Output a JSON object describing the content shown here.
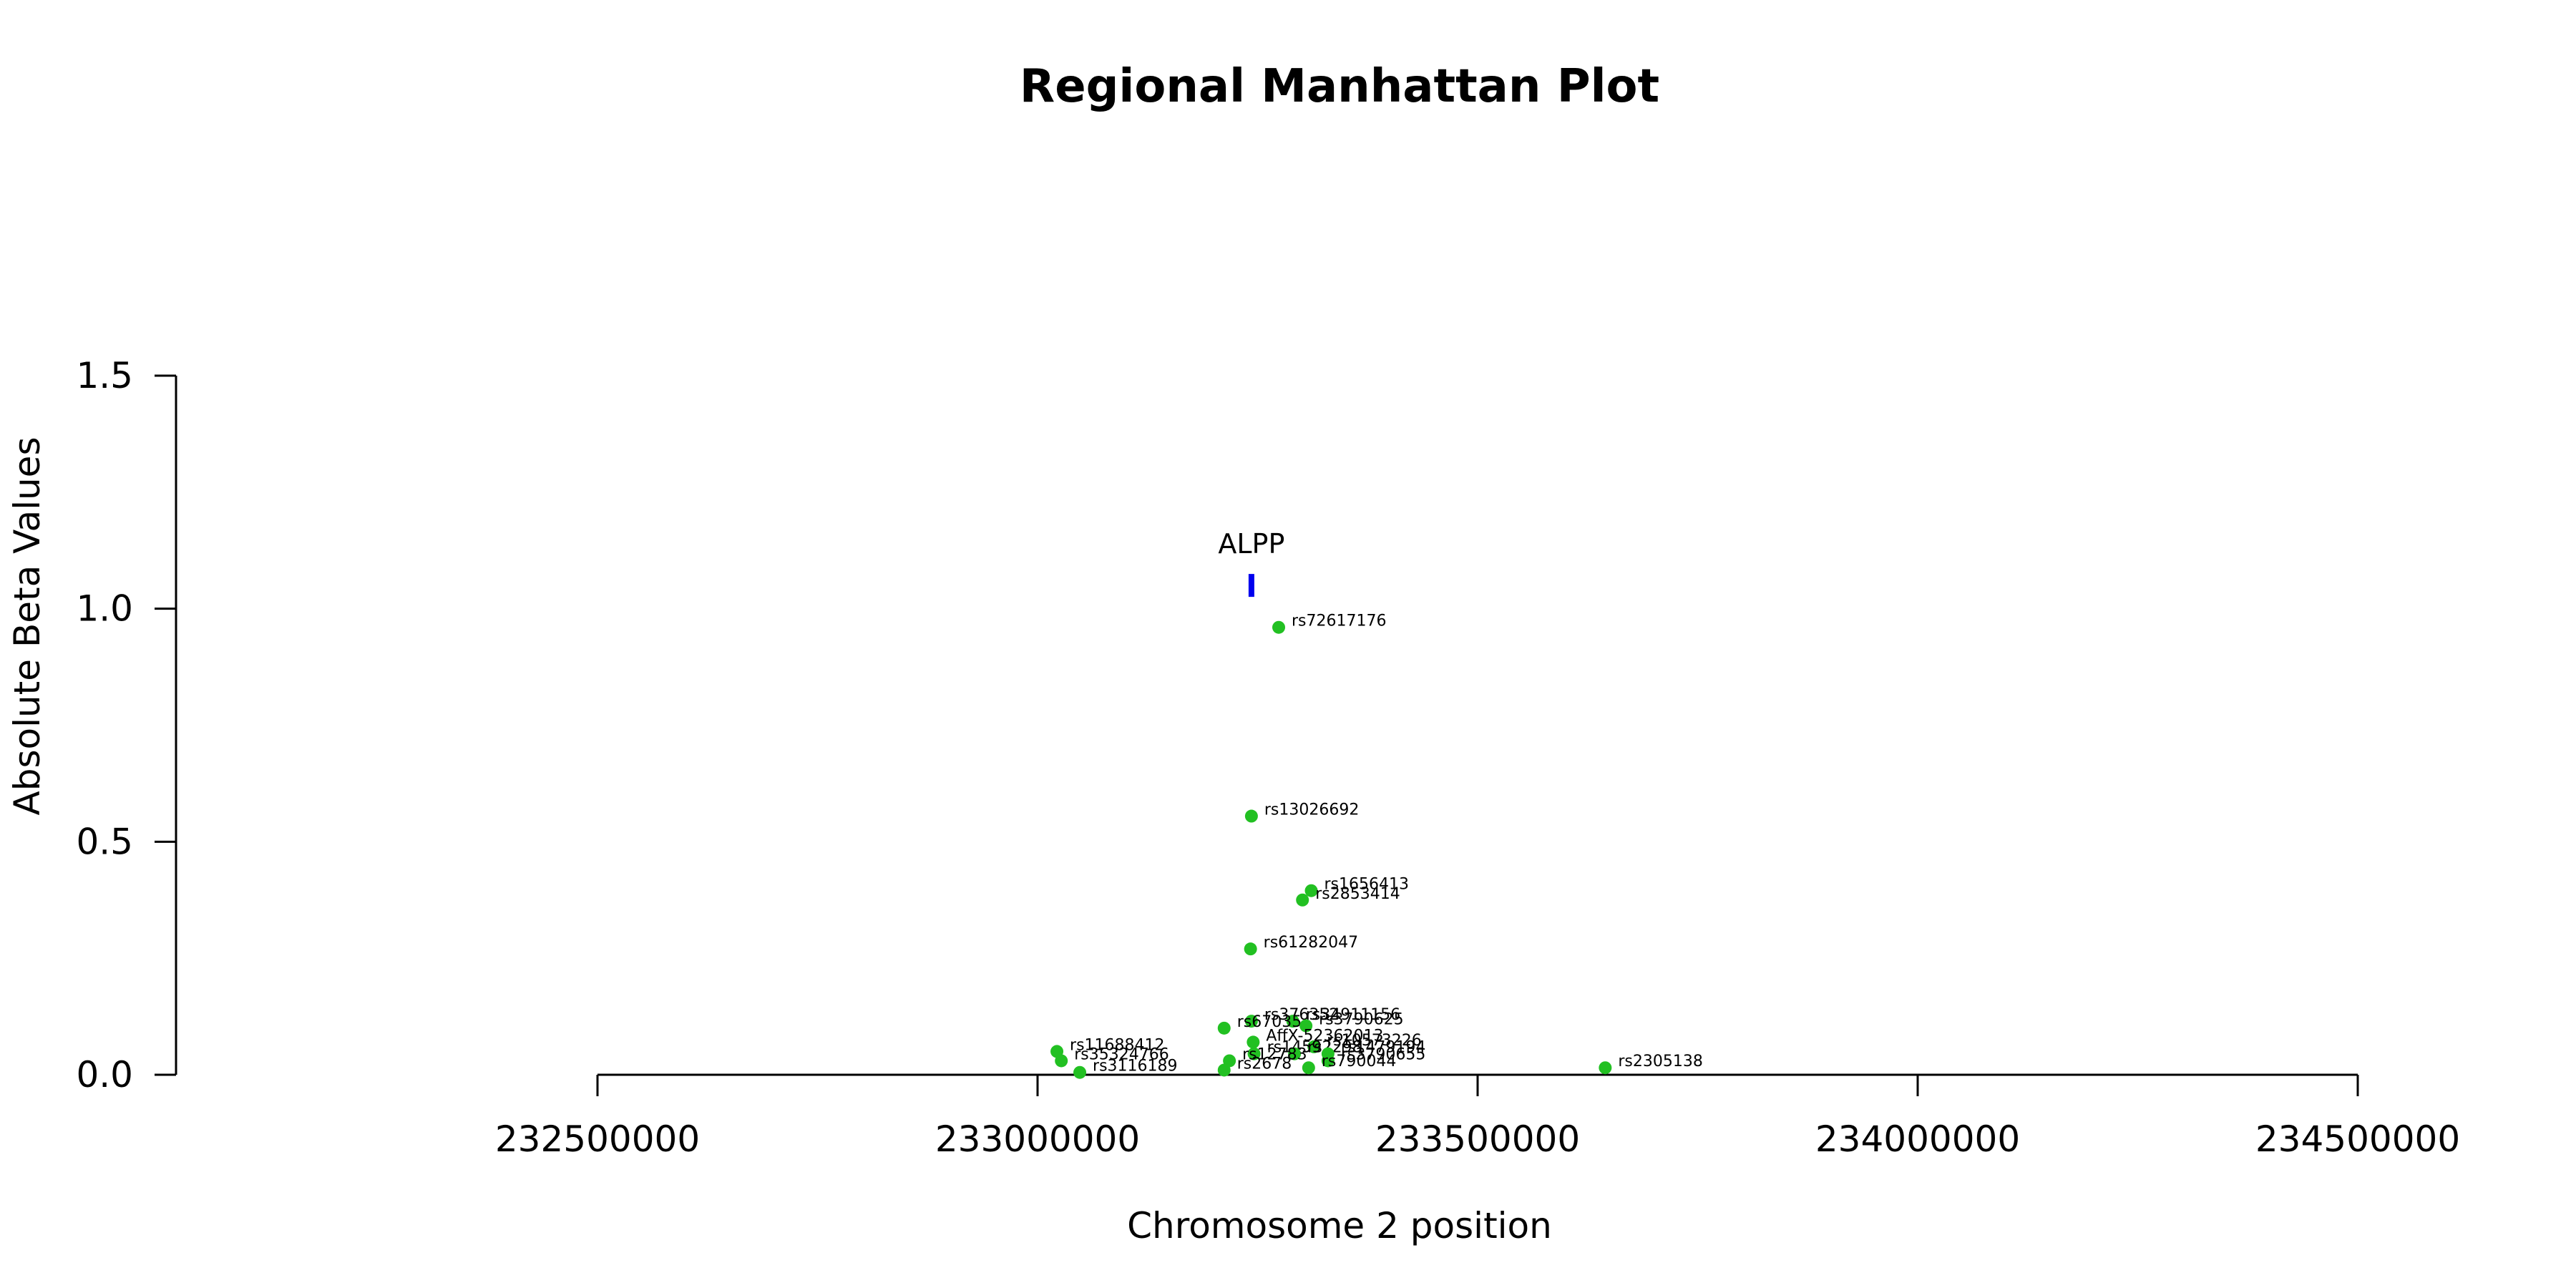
{
  "chart_data": {
    "type": "scatter",
    "title": "Regional Manhattan Plot",
    "xlabel": "Chromosome 2 position",
    "ylabel": "Absolute Beta Values",
    "xlim": [
      232500000,
      234500000
    ],
    "ylim": [
      0,
      1.5
    ],
    "x_ticks": [
      "232500000",
      "233000000",
      "233500000",
      "234000000",
      "234500000"
    ],
    "y_ticks": [
      "0.0",
      "0.5",
      "1.0",
      "1.5"
    ],
    "grid": false,
    "point_color": "#22c022",
    "gene_color": "#0000ee",
    "genes": [
      {
        "name": "ALPP",
        "x": 233243000,
        "y": 1.05
      }
    ],
    "points": [
      {
        "label": "rs72617176",
        "x": 233274000,
        "y": 0.96
      },
      {
        "label": "rs13026692",
        "x": 233243000,
        "y": 0.555
      },
      {
        "label": "rs1656413",
        "x": 233311000,
        "y": 0.395
      },
      {
        "label": "rs2853414",
        "x": 233301000,
        "y": 0.375
      },
      {
        "label": "rs61282047",
        "x": 233242000,
        "y": 0.27
      },
      {
        "label": "rs376352",
        "x": 233243000,
        "y": 0.115
      },
      {
        "label": "rs34911156",
        "x": 233290000,
        "y": 0.115
      },
      {
        "label": "rs67035",
        "x": 233212000,
        "y": 0.1
      },
      {
        "label": "rs3790625",
        "x": 233305000,
        "y": 0.105
      },
      {
        "label": "AffX-52362013",
        "x": 233245000,
        "y": 0.07
      },
      {
        "label": "rs10573226",
        "x": 233314000,
        "y": 0.06
      },
      {
        "label": "rs1459",
        "x": 233246000,
        "y": 0.045
      },
      {
        "label": "rs2298",
        "x": 233292000,
        "y": 0.045
      },
      {
        "label": "rs1479194",
        "x": 233330000,
        "y": 0.045
      },
      {
        "label": "rs11688412",
        "x": 233022000,
        "y": 0.05
      },
      {
        "label": "rs35324766",
        "x": 233027000,
        "y": 0.03
      },
      {
        "label": "rs3116189",
        "x": 233048000,
        "y": 0.005
      },
      {
        "label": "rs12783",
        "x": 233218000,
        "y": 0.03
      },
      {
        "label": "rs2678",
        "x": 233212000,
        "y": 0.01
      },
      {
        "label": "rs3790655",
        "x": 233330000,
        "y": 0.03
      },
      {
        "label": "rs790044",
        "x": 233308000,
        "y": 0.015
      },
      {
        "label": "rs2305138",
        "x": 233645000,
        "y": 0.015
      }
    ]
  }
}
